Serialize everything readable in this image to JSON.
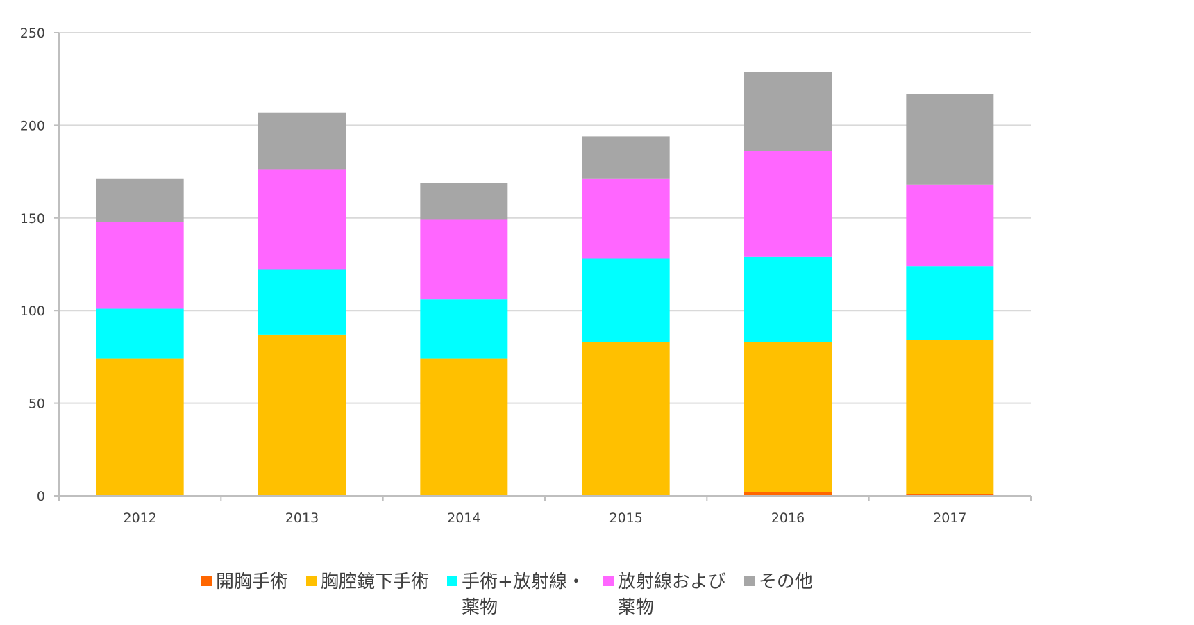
{
  "chart_data": {
    "type": "bar",
    "stacked": true,
    "categories": [
      "2012",
      "2013",
      "2014",
      "2015",
      "2016",
      "2017"
    ],
    "series": [
      {
        "name": "開胸手術",
        "color": "#FF6600",
        "values": [
          0,
          0,
          0,
          0,
          2,
          1
        ]
      },
      {
        "name": "胸腔鏡下手術",
        "color": "#FFC000",
        "values": [
          74,
          87,
          74,
          83,
          81,
          83
        ]
      },
      {
        "name": "手術+放射線・\n薬物",
        "color": "#00FFFF",
        "values": [
          27,
          35,
          32,
          45,
          46,
          40
        ]
      },
      {
        "name": "放射線および\n薬物",
        "color": "#FF66FF",
        "values": [
          47,
          54,
          43,
          43,
          57,
          44
        ]
      },
      {
        "name": "その他",
        "color": "#A6A6A6",
        "values": [
          23,
          31,
          20,
          23,
          43,
          49
        ]
      }
    ],
    "ylim": [
      0,
      250
    ],
    "yticks": [
      0,
      50,
      100,
      150,
      200,
      250
    ],
    "grid": true,
    "legend_position": "bottom"
  }
}
